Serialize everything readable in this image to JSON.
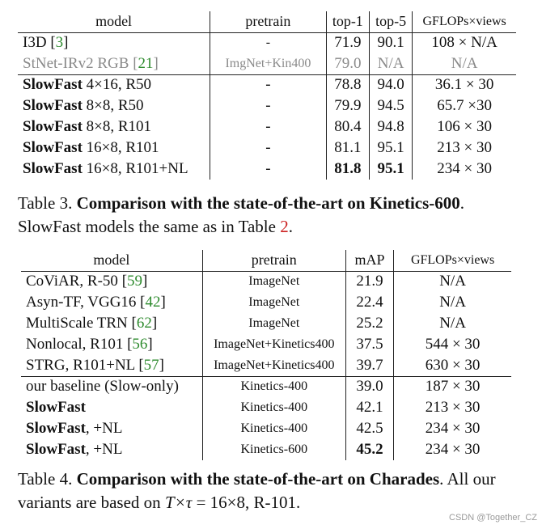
{
  "table3": {
    "headers": [
      "model",
      "pretrain",
      "top-1",
      "top-5",
      "GFLOPs×views"
    ],
    "rows": [
      {
        "bold": "",
        "model": "I3D ",
        "cite": "3",
        "pretrain": "-",
        "top1": "71.9",
        "top5": "90.1",
        "gflops": "108 × N/A",
        "style": "normal"
      },
      {
        "bold": "",
        "model": "StNet-IRv2 RGB ",
        "cite": "21",
        "pretrain": "ImgNet+Kin400",
        "top1": "79.0",
        "top5": "N/A",
        "gflops": "N/A",
        "style": "gray"
      },
      {
        "bold": "SlowFast",
        "model": " 4×16, R50",
        "cite": "",
        "pretrain": "-",
        "top1": "78.8",
        "top5": "94.0",
        "gflops": "36.1 × 30",
        "style": "normal"
      },
      {
        "bold": "SlowFast",
        "model": " 8×8, R50",
        "cite": "",
        "pretrain": "-",
        "top1": "79.9",
        "top5": "94.5",
        "gflops": "65.7 ×30",
        "style": "normal"
      },
      {
        "bold": "SlowFast",
        "model": " 8×8, R101",
        "cite": "",
        "pretrain": "-",
        "top1": "80.4",
        "top5": "94.8",
        "gflops": "106 × 30",
        "style": "normal"
      },
      {
        "bold": "SlowFast",
        "model": " 16×8, R101",
        "cite": "",
        "pretrain": "-",
        "top1": "81.1",
        "top5": "95.1",
        "gflops": "213 × 30",
        "style": "normal"
      },
      {
        "bold": "SlowFast",
        "model": " 16×8, R101+NL",
        "cite": "",
        "pretrain": "-",
        "top1": "81.8",
        "top5": "95.1",
        "gflops": "234 × 30",
        "style": "best"
      }
    ],
    "caption_prefix": "Table 3. ",
    "caption_bold": "Comparison with the state-of-the-art on Kinetics-600",
    "caption_mid": ". SlowFast models the same as in Table ",
    "caption_ref": "2",
    "caption_end": "."
  },
  "table4": {
    "headers": [
      "model",
      "pretrain",
      "mAP",
      "GFLOPs×views"
    ],
    "rows": [
      {
        "bold": "",
        "model": "CoViAR, R-50 ",
        "cite": "59",
        "pretrain": "ImageNet",
        "map": "21.9",
        "gflops": "N/A"
      },
      {
        "bold": "",
        "model": "Asyn-TF, VGG16 ",
        "cite": "42",
        "pretrain": "ImageNet",
        "map": "22.4",
        "gflops": "N/A"
      },
      {
        "bold": "",
        "model": "MultiScale TRN ",
        "cite": "62",
        "pretrain": "ImageNet",
        "map": "25.2",
        "gflops": "N/A"
      },
      {
        "bold": "",
        "model": "Nonlocal, R101 ",
        "cite": "56",
        "pretrain": "ImageNet+Kinetics400",
        "map": "37.5",
        "gflops": "544 × 30"
      },
      {
        "bold": "",
        "model": "STRG, R101+NL ",
        "cite": "57",
        "pretrain": "ImageNet+Kinetics400",
        "map": "39.7",
        "gflops": "630 × 30"
      },
      {
        "bold": "",
        "model": "our baseline (Slow-only)",
        "cite": "",
        "pretrain": "Kinetics-400",
        "map": "39.0",
        "gflops": "187 × 30"
      },
      {
        "bold": "SlowFast",
        "model": "",
        "cite": "",
        "pretrain": "Kinetics-400",
        "map": "42.1",
        "gflops": "213 × 30"
      },
      {
        "bold": "SlowFast",
        "model": ", +NL",
        "cite": "",
        "pretrain": "Kinetics-400",
        "map": "42.5",
        "gflops": "234 × 30"
      },
      {
        "bold": "SlowFast",
        "model": ", +NL",
        "cite": "",
        "pretrain": "Kinetics-600",
        "map": "45.2",
        "gflops": "234 × 30"
      }
    ],
    "caption_prefix": "Table 4. ",
    "caption_bold": "Comparison with the state-of-the-art on Charades",
    "caption_mid": ". All our variants are based on ",
    "caption_math": "T×τ",
    "caption_end": " = 16×8, R-101."
  },
  "watermark": "CSDN @Together_CZ"
}
